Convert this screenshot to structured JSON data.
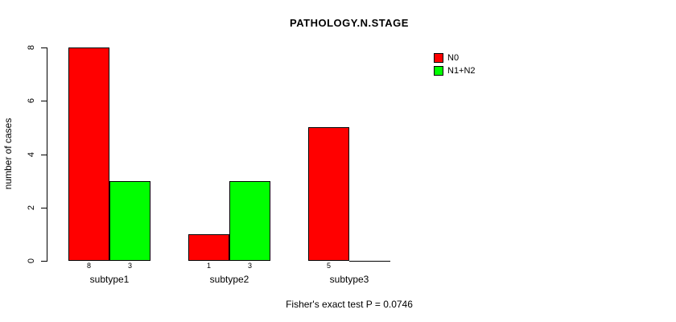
{
  "caption": "Fisher's exact test P = 0.0746",
  "chart_data": {
    "type": "bar",
    "title": "PATHOLOGY.N.STAGE",
    "categories": [
      "subtype1",
      "subtype2",
      "subtype3"
    ],
    "series": [
      {
        "name": "N0",
        "color": "#ff0000",
        "values": [
          8,
          1,
          5
        ]
      },
      {
        "name": "N1+N2",
        "color": "#00ff00",
        "values": [
          3,
          3,
          0
        ]
      }
    ],
    "bar_value_labels": [
      [
        "8",
        "3"
      ],
      [
        "1",
        "3"
      ],
      [
        "5",
        ""
      ]
    ],
    "ylabel": "number of cases",
    "xlabel": "",
    "ylim": [
      0,
      8
    ],
    "yticks": [
      0,
      2,
      4,
      6,
      8
    ],
    "grid": false,
    "legend_position": "top-right",
    "annotation": "Fisher's exact test P = 0.0746"
  }
}
